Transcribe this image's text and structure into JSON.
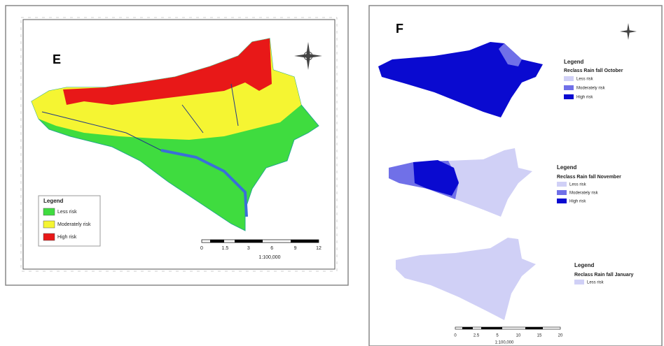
{
  "panel_e": {
    "label": "E",
    "legend": {
      "title": "Legend",
      "items": [
        "Less risk",
        "Moderately risk",
        "High risk"
      ]
    },
    "scale_ticks": [
      "0",
      "1.5",
      "3",
      "6",
      "9",
      "12"
    ],
    "scale": "1:100,000"
  },
  "panel_f": {
    "label": "F",
    "maps": [
      {
        "legend_title": "Legend",
        "layer": "Reclass Rain fall October",
        "items": [
          "Less risk",
          "Moderately risk",
          "High risk"
        ]
      },
      {
        "legend_title": "Legend",
        "layer": "Reclass Rain fall November",
        "items": [
          "Less risk",
          "Moderately risk",
          "High risk"
        ]
      },
      {
        "legend_title": "Legend",
        "layer": "Reclass Rain fall January",
        "items": [
          "Less risk"
        ]
      }
    ],
    "scale_ticks": [
      "0",
      "2.5",
      "5",
      "10",
      "15",
      "20"
    ],
    "scale": "1:100,000"
  }
}
